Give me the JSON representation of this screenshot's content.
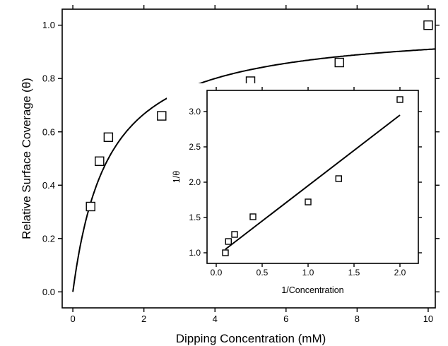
{
  "chart_data": [
    {
      "type": "scatter",
      "title": "",
      "xlabel": "Dipping Concentration (mM)",
      "ylabel": "Relative Surface Coverage (θ)",
      "xlim": [
        -0.3,
        10.2
      ],
      "ylim": [
        -0.06,
        1.06
      ],
      "xticks": [
        0,
        2,
        4,
        6,
        8,
        10
      ],
      "yticks": [
        0.0,
        0.2,
        0.4,
        0.6,
        0.8,
        1.0
      ],
      "xtick_labels": [
        "0",
        "2",
        "4",
        "6",
        "8",
        "10"
      ],
      "ytick_labels": [
        "0.0",
        "0.2",
        "0.4",
        "0.6",
        "0.8",
        "1.0"
      ],
      "grid": false,
      "series": [
        {
          "kind": "markers",
          "marker": "open-square",
          "x": [
            0.5,
            0.75,
            1.0,
            2.5,
            5.0,
            7.5,
            10.0
          ],
          "y": [
            0.32,
            0.49,
            0.58,
            0.66,
            0.79,
            0.86,
            1.0
          ]
        },
        {
          "kind": "fit-line",
          "model": "langmuir",
          "K": 1.0
        }
      ]
    },
    {
      "type": "scatter",
      "title": "",
      "xlabel": "1/Concentration",
      "ylabel": "1/θ",
      "xlim": [
        -0.1,
        2.2
      ],
      "ylim": [
        0.85,
        3.3
      ],
      "xticks": [
        0.0,
        0.5,
        1.0,
        1.5,
        2.0
      ],
      "yticks": [
        1.0,
        1.5,
        2.0,
        2.5,
        3.0
      ],
      "xtick_labels": [
        "0.0",
        "0.5",
        "1.0",
        "1.5",
        "2.0"
      ],
      "ytick_labels": [
        "1.0",
        "1.5",
        "2.0",
        "2.5",
        "3.0"
      ],
      "grid": false,
      "series": [
        {
          "kind": "markers",
          "marker": "open-square",
          "x": [
            0.1,
            0.133,
            0.2,
            0.4,
            1.0,
            1.333,
            2.0
          ],
          "y": [
            1.0,
            1.16,
            1.26,
            1.51,
            1.72,
            2.05,
            3.17
          ]
        },
        {
          "kind": "fit-line",
          "x": [
            0.1,
            2.0
          ],
          "y": [
            1.05,
            2.95
          ]
        }
      ]
    }
  ]
}
